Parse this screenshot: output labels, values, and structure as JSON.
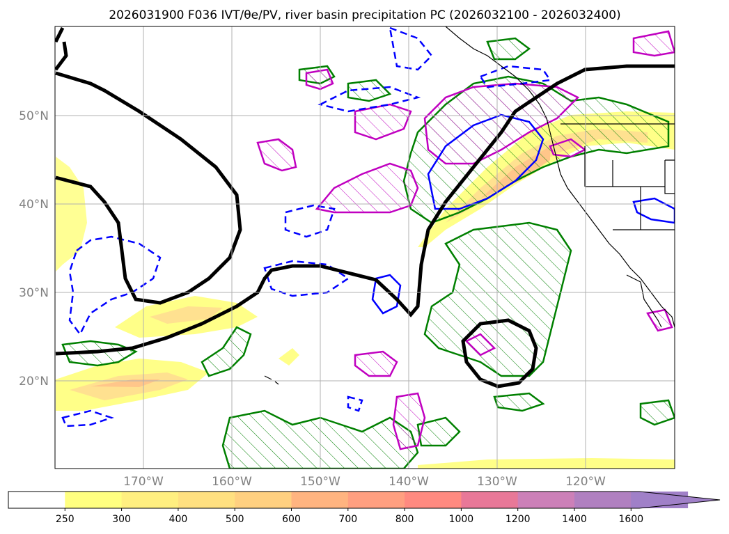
{
  "title": "2026031900 F036 IVT/θe/PV, river basin precipitation PC (2026032100 - 2026032400)",
  "map": {
    "lat_labels": [
      "50°N",
      "40°N",
      "30°N",
      "20°N"
    ],
    "lon_labels": [
      "170°W",
      "160°W",
      "150°W",
      "140°W",
      "130°W",
      "120°W"
    ],
    "lat_range": [
      10,
      60
    ],
    "lon_range": [
      -180,
      -110
    ],
    "gridlines": true
  },
  "colorbar": {
    "ticks": [
      "250",
      "300",
      "400",
      "500",
      "600",
      "700",
      "800",
      "1000",
      "1200",
      "1400",
      "1600"
    ],
    "colors": [
      "#ffffff",
      "#ffff80",
      "#ffef80",
      "#ffe080",
      "#ffd080",
      "#ffb480",
      "#ff9f80",
      "#ff8a80",
      "#e87898",
      "#cc80b8",
      "#b080c0",
      "#a080c8"
    ],
    "extend": "max"
  }
}
